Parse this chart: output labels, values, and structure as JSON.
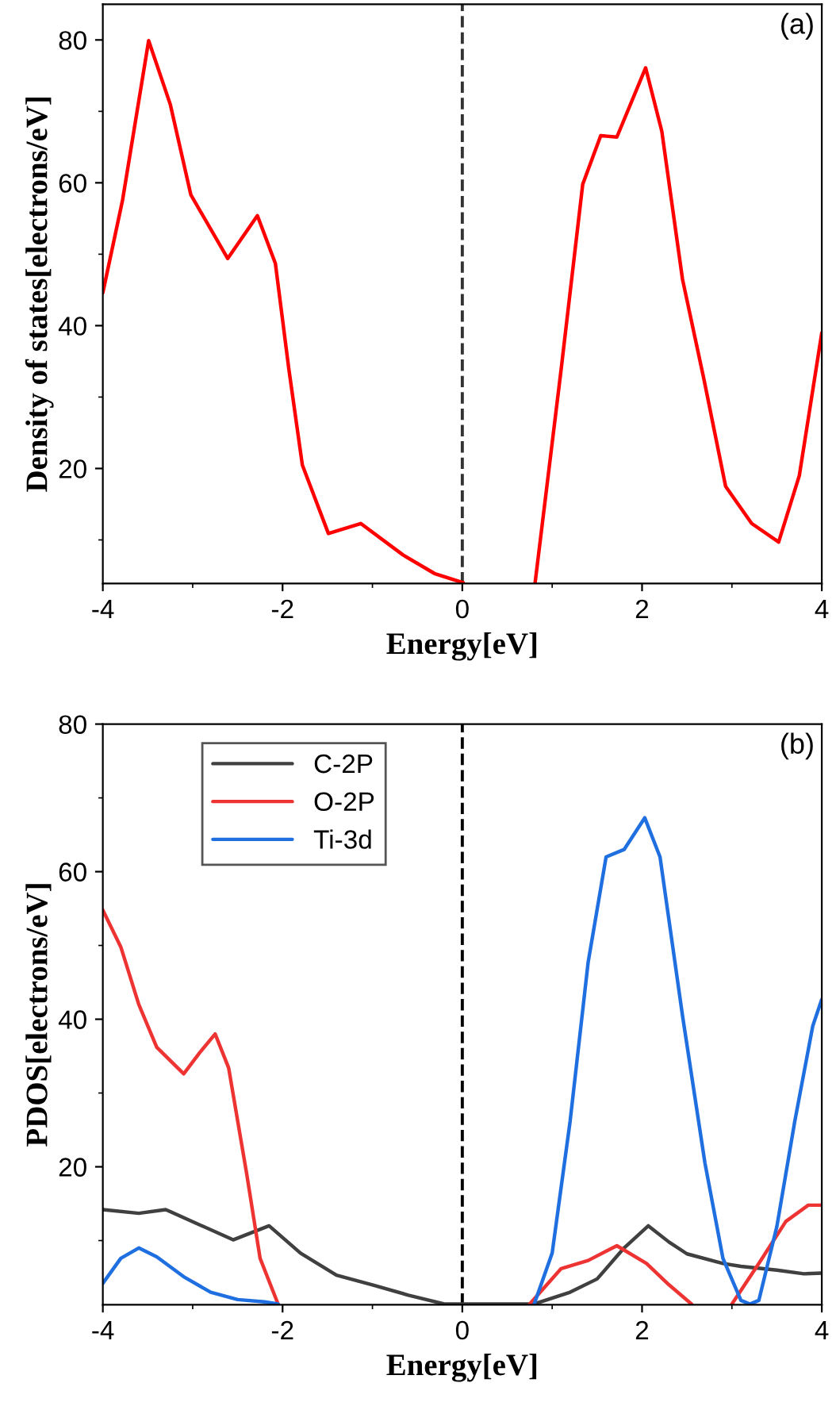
{
  "chart_data": [
    {
      "type": "line",
      "xlabel": "Energy[eV]",
      "ylabel": "Density of states[electrons/eV]",
      "annotations": [
        "(a)"
      ],
      "xlim": [
        -4,
        4
      ],
      "ylim": [
        3.9,
        85
      ],
      "xticks": [
        -4,
        -2,
        0,
        2,
        4
      ],
      "yticks": [
        20,
        40,
        60,
        80
      ],
      "grid": false,
      "legend": false,
      "line_style": "solid",
      "marker": "none",
      "ref_lines": [
        {
          "axis": "x",
          "value": 0,
          "color": "#333333",
          "line_style": "dashed"
        }
      ],
      "series": [
        {
          "color": "#ff0000",
          "x": [
            -4,
            -3.78,
            -3.49,
            -3.25,
            -3.02,
            -2.61,
            -2.28,
            -2.08,
            -1.93,
            -1.78,
            -1.49,
            -1.13,
            -0.66,
            -0.31,
            0.01,
            0.4,
            0.81,
            1.1,
            1.34,
            1.54,
            1.72,
            2.04,
            2.22,
            2.45,
            2.69,
            2.93,
            3.22,
            3.52,
            3.75,
            4
          ],
          "values": [
            44.6,
            57.6,
            79.9,
            71,
            58.3,
            49.4,
            55.4,
            48.7,
            33.9,
            20.5,
            10.9,
            12.3,
            7.9,
            5.3,
            4,
            null,
            4,
            33.9,
            59.8,
            66.6,
            66.4,
            76.1,
            67.2,
            46.5,
            32.4,
            17.5,
            12.3,
            9.7,
            19,
            39
          ]
        }
      ]
    },
    {
      "type": "line",
      "xlabel": "Energy[eV]",
      "ylabel": "PDOS[electrons/eV]",
      "annotations": [
        "(b)"
      ],
      "xlim": [
        -4,
        4
      ],
      "ylim": [
        1.3,
        80
      ],
      "xticks": [
        -4,
        -2,
        0,
        2,
        4
      ],
      "yticks": [
        20,
        40,
        60,
        80
      ],
      "grid": false,
      "legend": "top left",
      "line_style": "solid",
      "marker": "none",
      "ref_lines": [
        {
          "axis": "x",
          "value": 0,
          "color": "#000000",
          "line_style": "dashed"
        }
      ],
      "series": [
        {
          "name": "C-2P",
          "color": "#404040",
          "x": [
            -4,
            -3.6,
            -3.3,
            -2.55,
            -2.15,
            -1.8,
            -1.4,
            -1,
            -0.6,
            -0.2,
            0.3,
            0.8,
            1.2,
            1.5,
            1.8,
            2.07,
            2.3,
            2.5,
            2.9,
            3.1,
            3.5,
            3.8,
            4
          ],
          "values": [
            14.2,
            13.7,
            14.2,
            10.1,
            12.0,
            8.3,
            5.3,
            4.0,
            2.6,
            1.4,
            1.4,
            1.4,
            3.0,
            4.8,
            9.0,
            12.0,
            9.8,
            8.2,
            6.9,
            6.5,
            6.0,
            5.5,
            5.6
          ]
        },
        {
          "name": "O-2P",
          "color": "#ee3333",
          "x": [
            -4,
            -3.8,
            -3.6,
            -3.4,
            -3.1,
            -2.92,
            -2.75,
            -2.6,
            -2.4,
            -2.25,
            -2.05,
            -0.5,
            0.75,
            1.1,
            1.4,
            1.72,
            2.05,
            2.3,
            2.55,
            2.8,
            3.0,
            3.3,
            3.6,
            3.85,
            4
          ],
          "values": [
            54.8,
            49.8,
            42,
            36.2,
            32.6,
            35.5,
            38,
            33.4,
            19.1,
            7.6,
            1.4,
            null,
            1.4,
            6.2,
            7.3,
            9.3,
            6.9,
            4.0,
            1.4,
            null,
            1.4,
            6.9,
            12.6,
            14.8,
            14.8
          ]
        },
        {
          "name": "Ti-3d",
          "color": "#1f6fe0",
          "x": [
            -4,
            -3.8,
            -3.6,
            -3.4,
            -3.1,
            -2.8,
            -2.5,
            -2.2,
            -2.05,
            -0.5,
            0.8,
            1.0,
            1.2,
            1.4,
            1.6,
            1.8,
            2.03,
            2.2,
            2.45,
            2.7,
            2.9,
            3.1,
            3.2,
            3.3,
            3.5,
            3.7,
            3.9,
            4
          ],
          "values": [
            4.2,
            7.6,
            9.0,
            7.8,
            5.1,
            3.0,
            2.0,
            1.7,
            1.4,
            null,
            1.4,
            8.3,
            26.2,
            47.7,
            62,
            63,
            67.3,
            62,
            40.5,
            20.5,
            7.6,
            1.9,
            1.4,
            1.9,
            11.9,
            26.2,
            39.1,
            42.7
          ]
        }
      ]
    }
  ]
}
